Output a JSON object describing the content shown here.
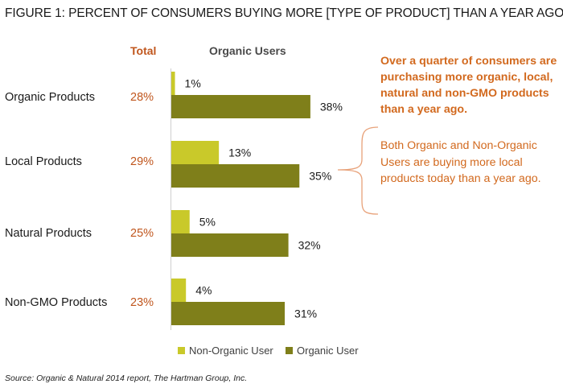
{
  "title": "FIGURE 1: PERCENT OF CONSUMERS BUYING MORE [TYPE OF PRODUCT] THAN A YEAR AGO",
  "headers": {
    "total": "Total",
    "organic_users": "Organic Users"
  },
  "colors": {
    "non_organic": "#c9c92a",
    "organic": "#7f7f1a",
    "accent": "#c0561d",
    "callout": "#d2691e"
  },
  "chart_data": {
    "type": "bar",
    "orientation": "horizontal",
    "categories": [
      "Organic Products",
      "Local Products",
      "Natural Products",
      "Non-GMO Products"
    ],
    "totals": [
      "28%",
      "29%",
      "25%",
      "23%"
    ],
    "series": [
      {
        "name": "Non-Organic User",
        "values": [
          1,
          13,
          5,
          4
        ],
        "labels": [
          "1%",
          "13%",
          "5%",
          "4%"
        ]
      },
      {
        "name": "Organic User",
        "values": [
          38,
          35,
          32,
          31
        ],
        "labels": [
          "38%",
          "35%",
          "32%",
          "31%"
        ]
      }
    ],
    "legend_position": "bottom",
    "grid": false
  },
  "callouts": {
    "primary": "Over a quarter of consumers are purchasing more organic, local, natural and non-GMO products than a year ago.",
    "secondary": "Both Organic and Non-Organic Users are buying more local products today than a year ago."
  },
  "source": "Source: Organic & Natural 2014 report, The Hartman Group, Inc."
}
